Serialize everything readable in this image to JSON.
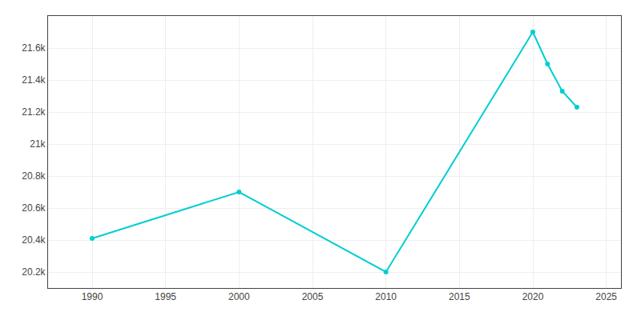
{
  "chart_data": {
    "type": "line",
    "x": [
      1990,
      2000,
      2010,
      2020,
      2021,
      2022,
      2023
    ],
    "values": [
      20410,
      20700,
      20200,
      21700,
      21500,
      21330,
      21230
    ],
    "color": "#00CED1",
    "marker": "circle",
    "xlim": [
      1987,
      2026
    ],
    "ylim": [
      20100,
      21800
    ],
    "xticks": [
      1990,
      1995,
      2000,
      2005,
      2010,
      2015,
      2020,
      2025
    ],
    "yticks": [
      {
        "value": 20200,
        "label": "20.2k"
      },
      {
        "value": 20400,
        "label": "20.4k"
      },
      {
        "value": 20600,
        "label": "20.6k"
      },
      {
        "value": 20800,
        "label": "20.8k"
      },
      {
        "value": 21000,
        "label": "21k"
      },
      {
        "value": 21200,
        "label": "21.2k"
      },
      {
        "value": 21400,
        "label": "21.4k"
      },
      {
        "value": 21600,
        "label": "21.6k"
      }
    ],
    "grid": true
  }
}
